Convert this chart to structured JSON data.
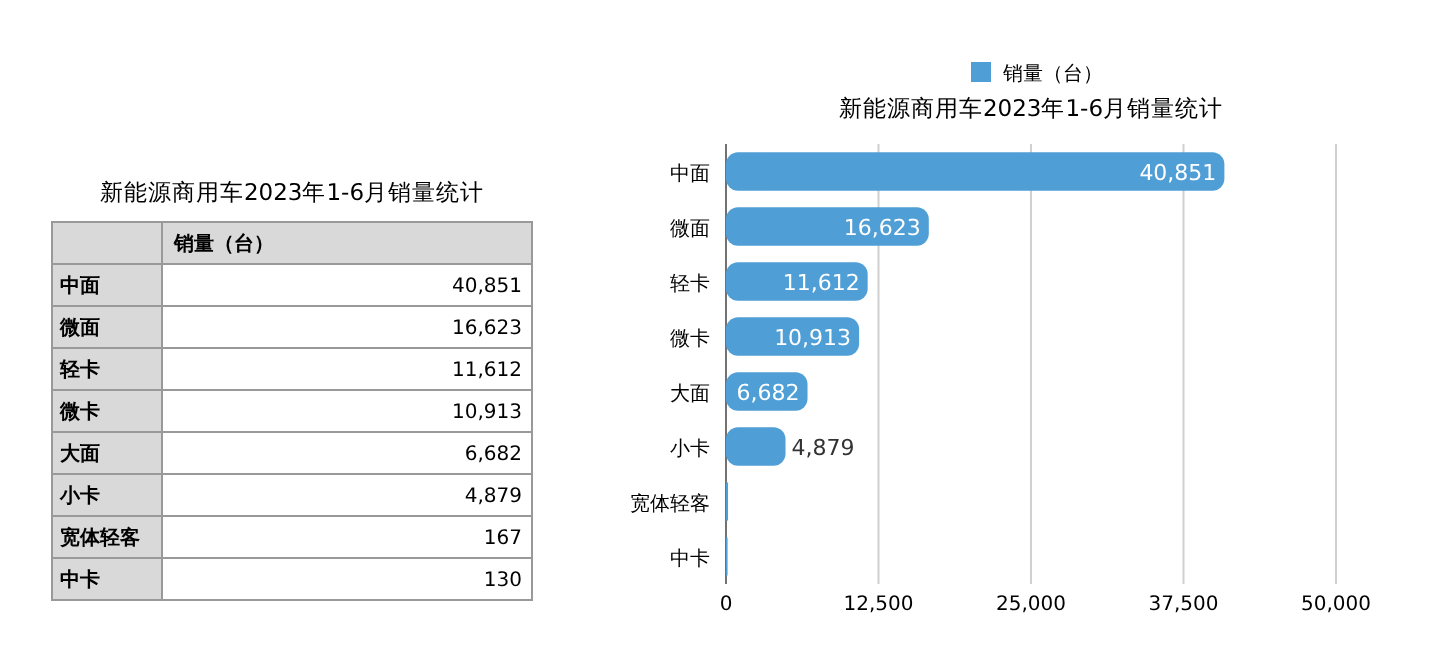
{
  "chart_data": [
    {
      "type": "other",
      "title": "新能源商用车2023年1-6月销量统计",
      "categories": [
        "中面",
        "微面",
        "轻卡",
        "微卡",
        "大面",
        "小卡",
        "宽体轻客",
        "中卡"
      ],
      "ylabel": "销量（台）",
      "value_labels": [
        "40,851",
        "16,623",
        "11,612",
        "10,913",
        "6,682",
        "4,879",
        "167",
        "130"
      ]
    },
    {
      "type": "bar",
      "orientation": "horizontal",
      "title": "新能源商用车2023年1-6月销量统计",
      "categories": [
        "中面",
        "微面",
        "轻卡",
        "微卡",
        "大面",
        "小卡",
        "宽体轻客",
        "中卡"
      ],
      "series": [
        {
          "name": "销量（台）",
          "color": "#4f9fd6",
          "values": [
            40851,
            16623,
            11612,
            10913,
            6682,
            4879,
            167,
            130
          ]
        }
      ],
      "value_labels": [
        "40,851",
        "16,623",
        "11,612",
        "10,913",
        "6,682",
        "4,879",
        null,
        null
      ],
      "xlim": [
        0,
        50000
      ],
      "xticks": [
        0,
        {
          "value": 12500,
          "label": "12,500"
        },
        {
          "value": 25000,
          "label": "25,000"
        },
        {
          "value": 37500,
          "label": "37,500"
        },
        {
          "value": 50000,
          "label": "50,000"
        }
      ],
      "grid": "x",
      "legend": "top"
    }
  ]
}
